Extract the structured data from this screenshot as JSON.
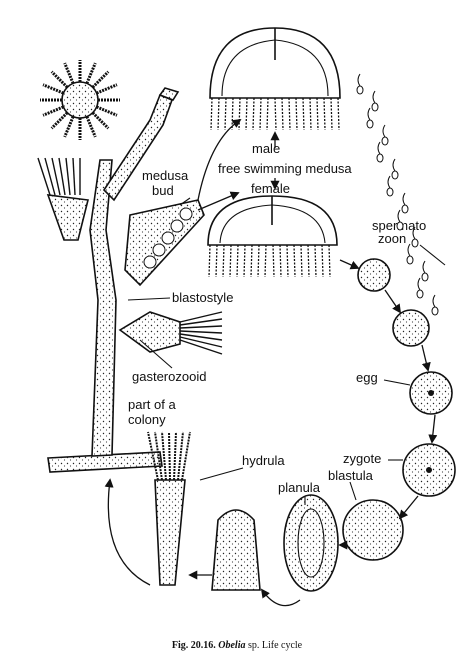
{
  "caption": {
    "figure": "Fig. 20.16.",
    "genus": "Obelia",
    "rest": "sp. Life cycle"
  },
  "labels": {
    "male": [
      "male"
    ],
    "free_swimming_medusa": [
      "free swimming medusa"
    ],
    "female": [
      "female"
    ],
    "medusa_bud": [
      "medusa",
      "bud"
    ],
    "spermatozoon": [
      "spermato",
      "zoon"
    ],
    "blastostyle": [
      "blastostyle"
    ],
    "gasterozooid": [
      "gasterozooid"
    ],
    "part_of_colony": [
      "part of a",
      "colony"
    ],
    "egg": [
      "egg"
    ],
    "zygote": [
      "zygote"
    ],
    "blastula": [
      "blastula"
    ],
    "planula": [
      "planula"
    ],
    "hydrula": [
      "hydrula"
    ]
  }
}
